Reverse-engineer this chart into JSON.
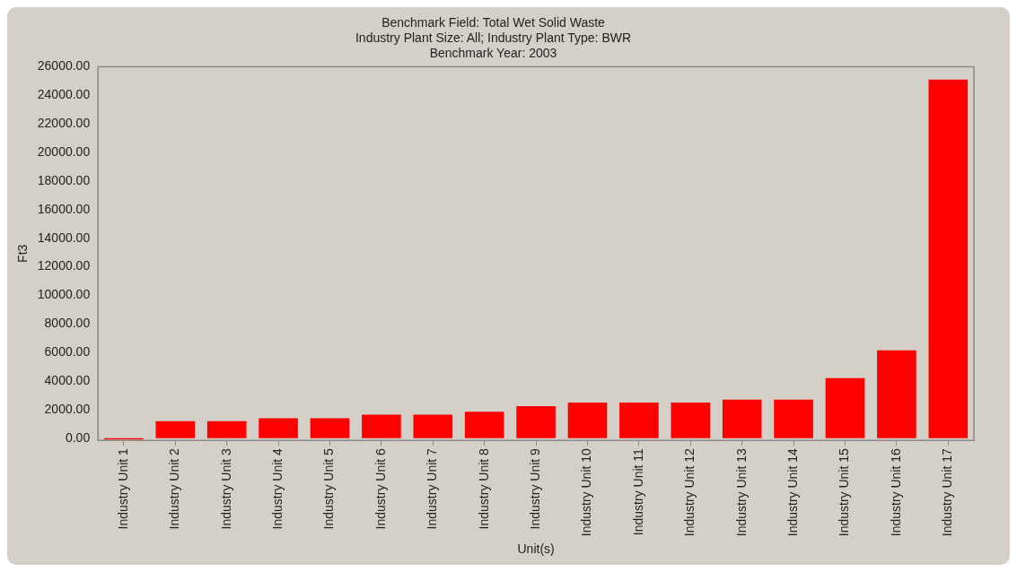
{
  "chart_data": {
    "type": "bar",
    "title": "Benchmark Field: Total Wet Solid Waste",
    "subtitle": "Industry Plant Size: All; Industry Plant Type: BWR\nBenchmark Year: 2003",
    "xlabel": "Unit(s)",
    "ylabel": "Ft3",
    "categories": [
      "Industry Unit 1",
      "Industry Unit 2",
      "Industry Unit 3",
      "Industry Unit 4",
      "Industry Unit 5",
      "Industry Unit 6",
      "Industry Unit 7",
      "Industry Unit 8",
      "Industry Unit 9",
      "Industry Unit 10",
      "Industry Unit 11",
      "Industry Unit 12",
      "Industry Unit 13",
      "Industry Unit 14",
      "Industry Unit 15",
      "Industry Unit 16",
      "Industry Unit 17"
    ],
    "values": [
      -100,
      1200,
      1200,
      1400,
      1400,
      1650,
      1650,
      1850,
      2250,
      2500,
      2500,
      2500,
      2700,
      2700,
      4200,
      6150,
      25100
    ],
    "color": "#ff0000",
    "ylim": [
      -150,
      26000
    ],
    "yticks": [
      {
        "value": 0,
        "label": "0.00"
      },
      {
        "value": 2000,
        "label": "2000.00"
      },
      {
        "value": 4000,
        "label": "4000.00"
      },
      {
        "value": 6000,
        "label": "6000.00"
      },
      {
        "value": 8000,
        "label": "8000.00"
      },
      {
        "value": 10000,
        "label": "10000.00"
      },
      {
        "value": 12000,
        "label": "12000.00"
      },
      {
        "value": 14000,
        "label": "14000.00"
      },
      {
        "value": 16000,
        "label": "16000.00"
      },
      {
        "value": 18000,
        "label": "18000.00"
      },
      {
        "value": 20000,
        "label": "20000.00"
      },
      {
        "value": 22000,
        "label": "22000.00"
      },
      {
        "value": 24000,
        "label": "24000.00"
      },
      {
        "value": 26000,
        "label": "26000.00"
      }
    ],
    "grid": false,
    "legend": false
  }
}
